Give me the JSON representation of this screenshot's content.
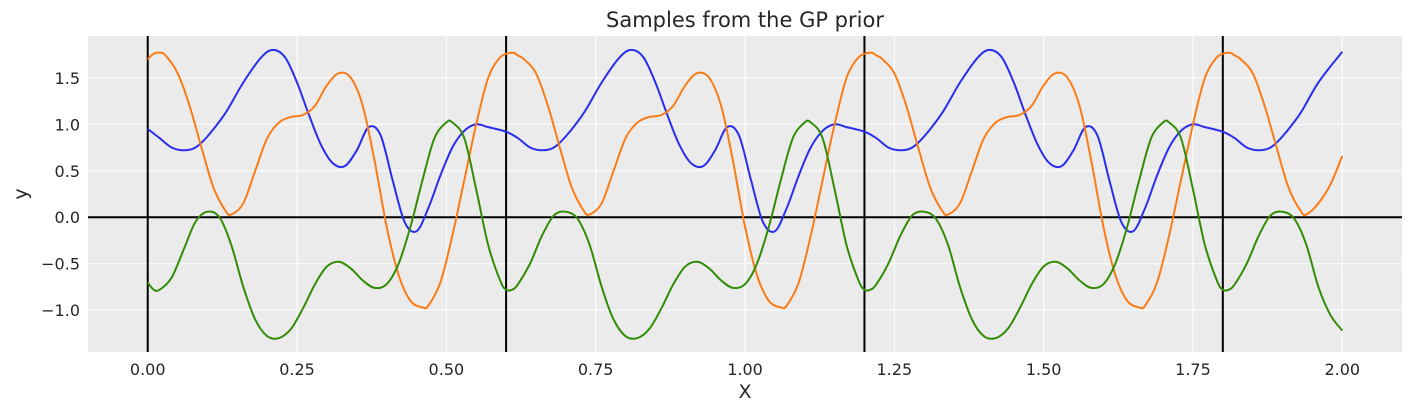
{
  "chart_data": {
    "type": "line",
    "title": "Samples from the GP prior",
    "xlabel": "X",
    "ylabel": "y",
    "xlim": [
      -0.1,
      2.1
    ],
    "ylim": [
      -1.45,
      1.95
    ],
    "x_ticks": [
      0.0,
      0.25,
      0.5,
      0.75,
      1.0,
      1.25,
      1.5,
      1.75,
      2.0
    ],
    "x_tick_labels": [
      "0.00",
      "0.25",
      "0.50",
      "0.75",
      "1.00",
      "1.25",
      "1.50",
      "1.75",
      "2.00"
    ],
    "y_ticks": [
      -1.0,
      -0.5,
      0.0,
      0.5,
      1.0,
      1.5
    ],
    "y_tick_labels": [
      "−1.0",
      "−0.5",
      "0.0",
      "0.5",
      "1.0",
      "1.5"
    ],
    "grid": true,
    "background": "#ebebeb",
    "grid_color": "#ffffff",
    "reference_lines": {
      "horizontal_y": [
        0.0
      ],
      "vertical_x": [
        0.0,
        0.6,
        1.2,
        1.8
      ],
      "color": "#000000"
    },
    "series": [
      {
        "color": "#2a2eec",
        "x": [
          0.0,
          0.02,
          0.04,
          0.06,
          0.08,
          0.1,
          0.13,
          0.16,
          0.19,
          0.21,
          0.23,
          0.25,
          0.27,
          0.29,
          0.31,
          0.33,
          0.35,
          0.37,
          0.39,
          0.41,
          0.43,
          0.45,
          0.47,
          0.49,
          0.51,
          0.53,
          0.55,
          0.57,
          0.6,
          0.62,
          0.64,
          0.66,
          0.68,
          0.7,
          0.73,
          0.76,
          0.79,
          0.81,
          0.83,
          0.85,
          0.87,
          0.89,
          0.91,
          0.93,
          0.95,
          0.97,
          0.99,
          1.01,
          1.03,
          1.05,
          1.07,
          1.09,
          1.11,
          1.13,
          1.15,
          1.17,
          1.2,
          1.22,
          1.24,
          1.26,
          1.28,
          1.3,
          1.33,
          1.36,
          1.39,
          1.41,
          1.43,
          1.45,
          1.47,
          1.49,
          1.51,
          1.53,
          1.55,
          1.57,
          1.59,
          1.61,
          1.63,
          1.65,
          1.67,
          1.69,
          1.71,
          1.73,
          1.75,
          1.77,
          1.8,
          1.82,
          1.84,
          1.86,
          1.88,
          1.9,
          1.93,
          1.96,
          2.0
        ],
        "y": [
          0.95,
          0.85,
          0.75,
          0.72,
          0.75,
          0.87,
          1.12,
          1.45,
          1.72,
          1.8,
          1.72,
          1.45,
          1.1,
          0.78,
          0.58,
          0.55,
          0.72,
          0.97,
          0.88,
          0.4,
          -0.05,
          -0.15,
          0.1,
          0.45,
          0.75,
          0.93,
          1.0,
          0.97,
          0.92,
          0.85,
          0.75,
          0.72,
          0.75,
          0.87,
          1.12,
          1.45,
          1.72,
          1.8,
          1.72,
          1.45,
          1.1,
          0.78,
          0.58,
          0.55,
          0.72,
          0.97,
          0.88,
          0.4,
          -0.05,
          -0.15,
          0.1,
          0.45,
          0.75,
          0.93,
          1.0,
          0.97,
          0.92,
          0.85,
          0.75,
          0.72,
          0.75,
          0.87,
          1.12,
          1.45,
          1.72,
          1.8,
          1.72,
          1.45,
          1.1,
          0.78,
          0.58,
          0.55,
          0.72,
          0.97,
          0.88,
          0.4,
          -0.05,
          -0.15,
          0.1,
          0.45,
          0.75,
          0.93,
          1.0,
          0.97,
          0.92,
          0.85,
          0.75,
          0.72,
          0.75,
          0.87,
          1.12,
          1.45,
          1.78
        ]
      },
      {
        "color": "#fa7c17",
        "x": [
          0.0,
          0.01,
          0.02,
          0.03,
          0.05,
          0.07,
          0.09,
          0.11,
          0.13,
          0.14,
          0.16,
          0.18,
          0.2,
          0.22,
          0.24,
          0.26,
          0.28,
          0.3,
          0.32,
          0.34,
          0.36,
          0.38,
          0.4,
          0.42,
          0.44,
          0.46,
          0.47,
          0.49,
          0.51,
          0.53,
          0.55,
          0.57,
          0.59,
          0.61,
          0.62,
          0.63,
          0.65,
          0.67,
          0.69,
          0.71,
          0.73,
          0.74,
          0.76,
          0.78,
          0.8,
          0.82,
          0.84,
          0.86,
          0.88,
          0.9,
          0.92,
          0.94,
          0.96,
          0.98,
          1.0,
          1.02,
          1.04,
          1.06,
          1.07,
          1.09,
          1.11,
          1.13,
          1.15,
          1.17,
          1.19,
          1.21,
          1.22,
          1.23,
          1.25,
          1.27,
          1.29,
          1.31,
          1.33,
          1.34,
          1.36,
          1.38,
          1.4,
          1.42,
          1.44,
          1.46,
          1.48,
          1.5,
          1.52,
          1.54,
          1.56,
          1.58,
          1.6,
          1.62,
          1.64,
          1.66,
          1.67,
          1.69,
          1.71,
          1.73,
          1.75,
          1.77,
          1.79,
          1.81,
          1.82,
          1.83,
          1.85,
          1.87,
          1.89,
          1.91,
          1.93,
          1.94,
          1.96,
          1.98,
          2.0
        ],
        "y": [
          1.7,
          1.76,
          1.77,
          1.74,
          1.55,
          1.2,
          0.75,
          0.32,
          0.07,
          0.03,
          0.15,
          0.5,
          0.85,
          1.02,
          1.08,
          1.1,
          1.2,
          1.42,
          1.55,
          1.5,
          1.2,
          0.6,
          -0.1,
          -0.62,
          -0.9,
          -0.97,
          -0.95,
          -0.7,
          -0.2,
          0.4,
          1.0,
          1.5,
          1.72,
          1.77,
          1.74,
          1.7,
          1.55,
          1.2,
          0.75,
          0.32,
          0.07,
          0.03,
          0.15,
          0.5,
          0.85,
          1.02,
          1.08,
          1.1,
          1.2,
          1.42,
          1.55,
          1.5,
          1.2,
          0.6,
          -0.1,
          -0.62,
          -0.9,
          -0.97,
          -0.95,
          -0.7,
          -0.2,
          0.4,
          1.0,
          1.5,
          1.72,
          1.77,
          1.74,
          1.7,
          1.55,
          1.2,
          0.75,
          0.32,
          0.07,
          0.03,
          0.15,
          0.5,
          0.85,
          1.02,
          1.08,
          1.1,
          1.2,
          1.42,
          1.55,
          1.5,
          1.2,
          0.6,
          -0.1,
          -0.62,
          -0.9,
          -0.97,
          -0.95,
          -0.7,
          -0.2,
          0.4,
          1.0,
          1.5,
          1.72,
          1.77,
          1.74,
          1.7,
          1.55,
          1.2,
          0.75,
          0.32,
          0.07,
          0.03,
          0.15,
          0.35,
          0.66
        ]
      },
      {
        "color": "#328c06",
        "x": [
          0.0,
          0.01,
          0.02,
          0.04,
          0.06,
          0.08,
          0.1,
          0.12,
          0.14,
          0.16,
          0.18,
          0.2,
          0.22,
          0.24,
          0.26,
          0.28,
          0.3,
          0.32,
          0.34,
          0.36,
          0.38,
          0.4,
          0.42,
          0.44,
          0.46,
          0.48,
          0.5,
          0.51,
          0.53,
          0.55,
          0.57,
          0.59,
          0.6,
          0.61,
          0.62,
          0.64,
          0.66,
          0.68,
          0.7,
          0.72,
          0.74,
          0.76,
          0.78,
          0.8,
          0.82,
          0.84,
          0.86,
          0.88,
          0.9,
          0.92,
          0.94,
          0.96,
          0.98,
          1.0,
          1.02,
          1.04,
          1.06,
          1.08,
          1.1,
          1.11,
          1.13,
          1.15,
          1.17,
          1.19,
          1.2,
          1.21,
          1.22,
          1.24,
          1.26,
          1.28,
          1.3,
          1.32,
          1.34,
          1.36,
          1.38,
          1.4,
          1.42,
          1.44,
          1.46,
          1.48,
          1.5,
          1.52,
          1.54,
          1.56,
          1.58,
          1.6,
          1.62,
          1.64,
          1.66,
          1.68,
          1.7,
          1.71,
          1.73,
          1.75,
          1.77,
          1.79,
          1.8,
          1.81,
          1.82,
          1.84,
          1.86,
          1.88,
          1.9,
          1.92,
          1.94,
          1.96,
          1.98,
          2.0
        ],
        "y": [
          -0.7,
          -0.78,
          -0.78,
          -0.65,
          -0.35,
          -0.05,
          0.06,
          0.0,
          -0.3,
          -0.75,
          -1.1,
          -1.28,
          -1.3,
          -1.2,
          -0.98,
          -0.72,
          -0.53,
          -0.48,
          -0.55,
          -0.68,
          -0.76,
          -0.72,
          -0.5,
          -0.1,
          0.4,
          0.85,
          1.02,
          1.02,
          0.85,
          0.3,
          -0.3,
          -0.68,
          -0.78,
          -0.78,
          -0.72,
          -0.5,
          -0.2,
          0.02,
          0.06,
          -0.02,
          -0.3,
          -0.75,
          -1.1,
          -1.28,
          -1.3,
          -1.2,
          -0.98,
          -0.72,
          -0.53,
          -0.48,
          -0.55,
          -0.68,
          -0.76,
          -0.72,
          -0.5,
          -0.1,
          0.4,
          0.85,
          1.02,
          1.02,
          0.85,
          0.3,
          -0.3,
          -0.68,
          -0.78,
          -0.78,
          -0.72,
          -0.5,
          -0.2,
          0.02,
          0.06,
          -0.02,
          -0.3,
          -0.75,
          -1.1,
          -1.28,
          -1.3,
          -1.2,
          -0.98,
          -0.72,
          -0.53,
          -0.48,
          -0.55,
          -0.68,
          -0.76,
          -0.72,
          -0.5,
          -0.1,
          0.4,
          0.85,
          1.02,
          1.02,
          0.85,
          0.3,
          -0.3,
          -0.68,
          -0.78,
          -0.78,
          -0.72,
          -0.5,
          -0.2,
          0.02,
          0.06,
          -0.02,
          -0.3,
          -0.75,
          -1.05,
          -1.22
        ]
      }
    ]
  }
}
